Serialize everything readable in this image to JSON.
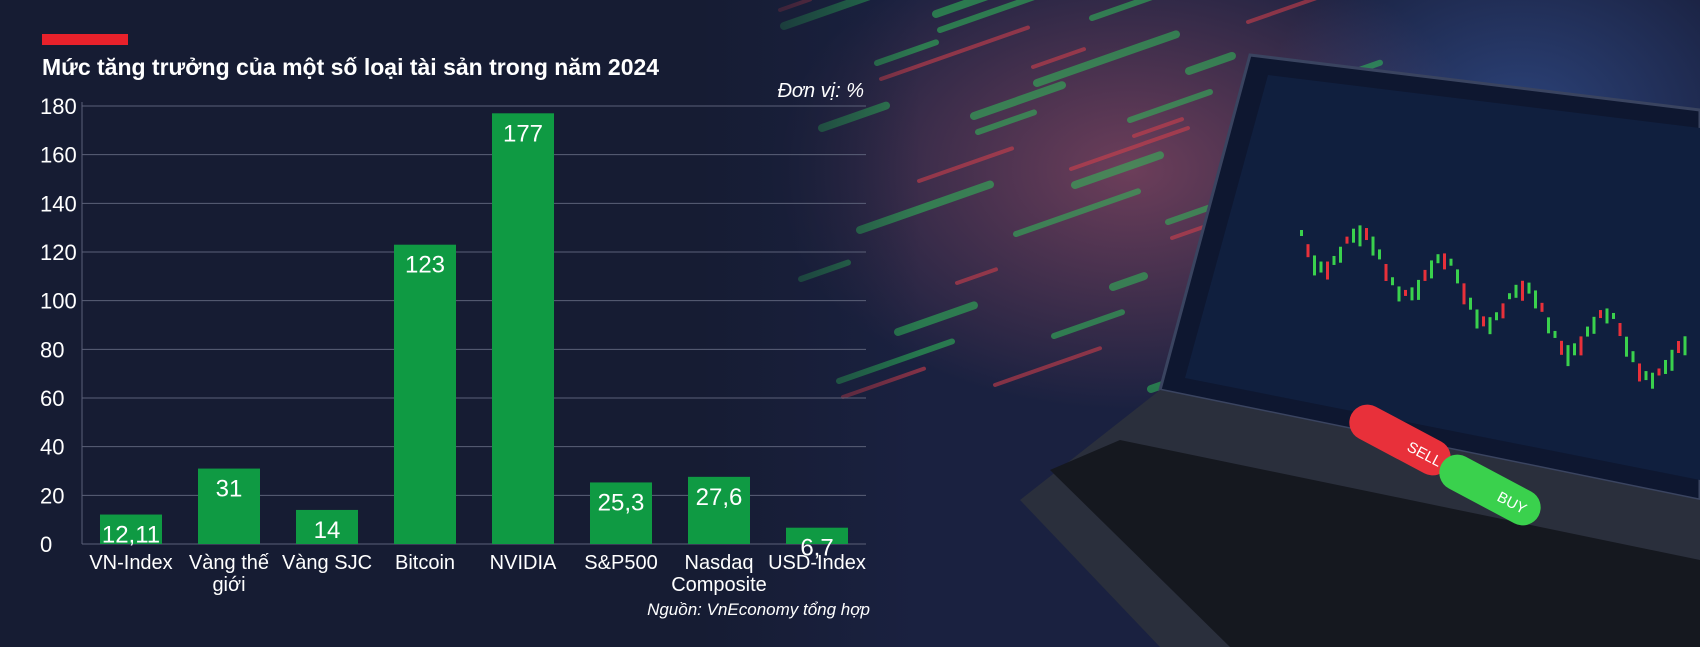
{
  "header": {
    "title": "Mức tăng trưởng của một số loại tài sản trong năm 2024",
    "unit_note": "Đơn vị: %"
  },
  "footer": {
    "source": "Nguồn: VnEconomy tổng hợp"
  },
  "colors": {
    "background": "#161c33",
    "bar": "#0f9a43",
    "accent": "#e8212b",
    "gridline": "#5b6078"
  },
  "illustration": {
    "laptop_buttons": {
      "sell": "SELL",
      "buy": "BUY"
    }
  },
  "chart_data": {
    "type": "bar",
    "categories": [
      "VN-Index",
      "Vàng thế giới",
      "Vàng SJC",
      "Bitcoin",
      "NVIDIA",
      "S&P500",
      "Nasdaq Composite",
      "USD-Index"
    ],
    "category_lines": [
      [
        "VN-Index"
      ],
      [
        "Vàng thế",
        "giới"
      ],
      [
        "Vàng SJC"
      ],
      [
        "Bitcoin"
      ],
      [
        "NVIDIA"
      ],
      [
        "S&P500"
      ],
      [
        "Nasdaq",
        "Composite"
      ],
      [
        "USD-Index"
      ]
    ],
    "values": [
      12.11,
      31,
      14,
      123,
      177,
      25.3,
      27.6,
      6.7
    ],
    "value_labels": [
      "12,11",
      "31",
      "14",
      "123",
      "177",
      "25,3",
      "27,6",
      "6,7"
    ],
    "yticks": [
      0,
      20,
      40,
      60,
      80,
      100,
      120,
      140,
      160,
      180
    ],
    "ylim": [
      0,
      180
    ],
    "grid": true,
    "title": "Mức tăng trưởng của một số loại tài sản trong năm 2024",
    "xlabel": "",
    "ylabel": "",
    "legend": "none"
  }
}
